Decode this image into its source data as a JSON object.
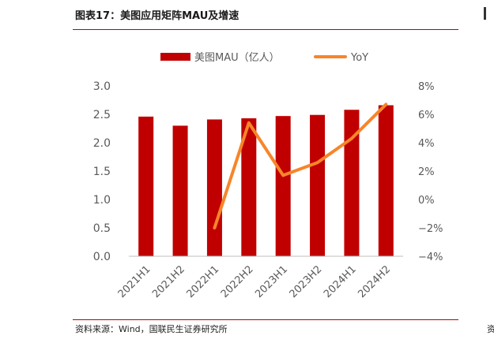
{
  "header": {
    "figure_title": "图表17：美图应用矩阵MAU及增速"
  },
  "footer": {
    "source": "资料来源：Wind，国联民生证券研究所",
    "right_edge_char": "资"
  },
  "colors": {
    "bar": "#c00000",
    "line": "#f7852a",
    "rule": "#c00000",
    "axis": "#bfbfbf",
    "text": "#595959"
  },
  "chart_data": {
    "type": "bar+line",
    "categories": [
      "2021H1",
      "2021H2",
      "2022H1",
      "2022H2",
      "2023H1",
      "2023H2",
      "2024H1",
      "2024H2"
    ],
    "series": [
      {
        "name": "美图MAU（亿人）",
        "type": "bar",
        "axis": "left",
        "values": [
          2.46,
          2.3,
          2.41,
          2.43,
          2.47,
          2.49,
          2.58,
          2.66
        ]
      },
      {
        "name": "YoY",
        "type": "line",
        "axis": "right",
        "values": [
          null,
          null,
          -2.0,
          5.4,
          1.7,
          2.6,
          4.3,
          6.7
        ]
      }
    ],
    "y_left": {
      "range": [
        0,
        3.0
      ],
      "ticks": [
        0,
        0.5,
        1.0,
        1.5,
        2.0,
        2.5,
        3.0
      ],
      "tick_labels": [
        "0.0",
        "0.5",
        "1.0",
        "1.5",
        "2.0",
        "2.5",
        "3.0"
      ]
    },
    "y_right": {
      "range": [
        -4,
        8
      ],
      "ticks": [
        -4,
        -2,
        0,
        2,
        4,
        6,
        8
      ],
      "tick_labels": [
        "−4%",
        "−2%",
        "0%",
        "2%",
        "4%",
        "6%",
        "8%"
      ]
    },
    "legend": {
      "position": "top-center",
      "labels": [
        "美图MAU（亿人）",
        "YoY"
      ]
    },
    "grid": false
  }
}
